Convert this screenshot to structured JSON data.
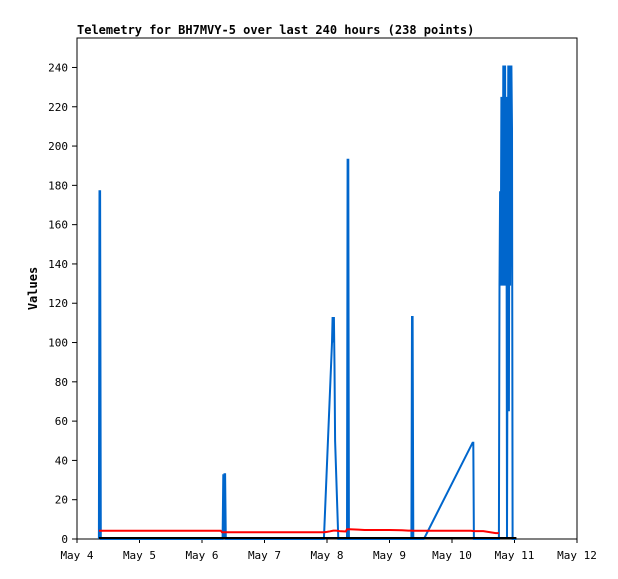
{
  "chart_data": {
    "type": "line",
    "title": "Telemetry for BH7MVY-5 over last 240 hours (238 points)",
    "xlabel": "",
    "ylabel": "Values",
    "xlim": [
      4.0,
      12.0
    ],
    "ylim": [
      0,
      255
    ],
    "x_tick_labels": [
      "May 4",
      "May 5",
      "May 6",
      "May 7",
      "May 8",
      "May 9",
      "May 10",
      "May 11",
      "May 12"
    ],
    "x_tick_values": [
      4,
      5,
      6,
      7,
      8,
      9,
      10,
      11,
      12
    ],
    "y_tick_values": [
      0,
      20,
      40,
      60,
      80,
      100,
      120,
      140,
      160,
      180,
      200,
      220,
      240
    ],
    "grid": false,
    "legend": "none",
    "series": [
      {
        "color": "#0066cc",
        "x": [
          4.35,
          4.36,
          4.37,
          4.38,
          6.33,
          6.34,
          6.35,
          6.36,
          6.37,
          6.38,
          7.95,
          8.08,
          8.09,
          8.1,
          8.11,
          8.12,
          8.13,
          8.18,
          8.22,
          8.32,
          8.33,
          8.34,
          8.35,
          8.36,
          9.35,
          9.36,
          9.37,
          9.38,
          9.55,
          10.33,
          10.34,
          10.35,
          10.36,
          10.75,
          10.76,
          10.77,
          10.78,
          10.79,
          10.8,
          10.81,
          10.82,
          10.83,
          10.84,
          10.85,
          10.86,
          10.87,
          10.88,
          10.89,
          10.9,
          10.91,
          10.92,
          10.93,
          10.94,
          10.95,
          10.96,
          10.97,
          10.98,
          10.99,
          11.0,
          11.01,
          11.02,
          11.03
        ],
        "y": [
          0,
          177,
          177,
          0,
          0,
          33,
          0,
          33,
          33,
          0,
          0,
          100,
          113,
          100,
          113,
          88,
          50,
          0,
          0,
          0,
          193,
          193,
          0,
          0,
          0,
          113,
          113,
          0,
          0,
          49,
          49,
          0,
          0,
          0,
          129,
          177,
          129,
          225,
          209,
          129,
          241,
          129,
          225,
          241,
          129,
          225,
          0,
          129,
          241,
          65,
          241,
          129,
          193,
          241,
          209,
          0,
          0,
          0,
          0,
          0,
          0,
          0
        ]
      },
      {
        "color": "#ff0000",
        "x": [
          4.35,
          6.3,
          6.32,
          7.95,
          8.0,
          8.05,
          8.1,
          8.15,
          8.2,
          8.3,
          8.32,
          8.34,
          8.36,
          8.5,
          8.6,
          8.7,
          9.0,
          9.2,
          9.3,
          9.35,
          9.37,
          9.5,
          10.0,
          10.3,
          10.35,
          10.5,
          10.7,
          10.75
        ],
        "y": [
          4.2,
          4.2,
          3.4,
          3.4,
          3.6,
          3.9,
          4.3,
          4.3,
          4.0,
          3.8,
          5.0,
          5.0,
          5.0,
          4.8,
          4.6,
          4.6,
          4.6,
          4.5,
          4.3,
          4.3,
          4.2,
          4.2,
          4.2,
          4.2,
          4.0,
          4.0,
          3.0,
          3.0
        ]
      },
      {
        "color": "#000000",
        "x": [
          4.35,
          11.03
        ],
        "y": [
          0.5,
          0.5
        ]
      }
    ]
  }
}
